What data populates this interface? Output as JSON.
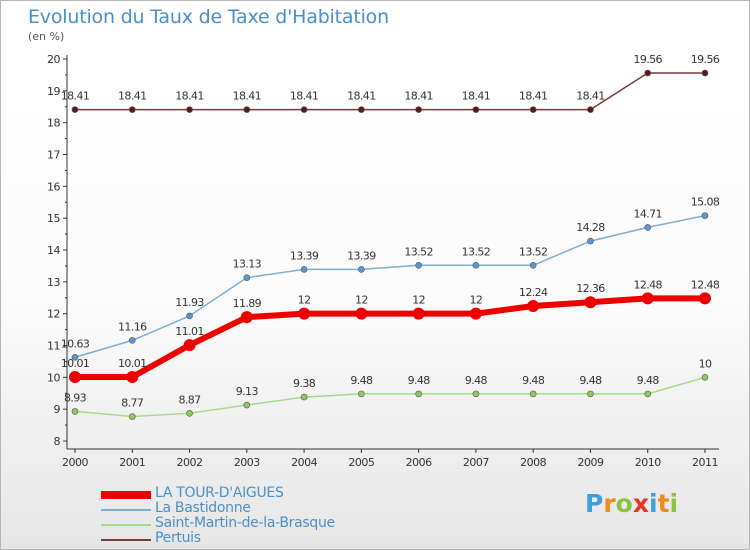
{
  "title": "Evolution du Taux de Taxe d'Habitation",
  "subtitle": "(en %)",
  "logo": {
    "text": "Proxiti",
    "letters": [
      {
        "ch": "P",
        "color": "#3e9fd8"
      },
      {
        "ch": "r",
        "color": "#f08a1c"
      },
      {
        "ch": "o",
        "color": "#8ac43f"
      },
      {
        "ch": "x",
        "color": "#e8341c"
      },
      {
        "ch": "i",
        "color": "#3e9fd8"
      },
      {
        "ch": "t",
        "color": "#f08a1c"
      },
      {
        "ch": "i",
        "color": "#8ac43f"
      }
    ]
  },
  "chart_data": {
    "type": "line",
    "x": [
      "2000",
      "2001",
      "2002",
      "2003",
      "2004",
      "2005",
      "2006",
      "2007",
      "2008",
      "2009",
      "2010",
      "2011"
    ],
    "ylim": [
      8,
      20
    ],
    "yticks": [
      "8",
      "9",
      "10",
      "11",
      "12",
      "13",
      "14",
      "15",
      "16",
      "17",
      "18",
      "19",
      "20"
    ],
    "grid": false,
    "legend_position": "bottom-left",
    "series": [
      {
        "name": "Pertuis",
        "color": "#7a3a3a",
        "marker_color": "#5a1a1a",
        "stroke_width": 1.5,
        "marker_radius": 3,
        "values": [
          18.41,
          18.41,
          18.41,
          18.41,
          18.41,
          18.41,
          18.41,
          18.41,
          18.41,
          18.41,
          19.56,
          19.56
        ],
        "labels": [
          "18.41",
          "18.41",
          "18.41",
          "18.41",
          "18.41",
          "18.41",
          "18.41",
          "18.41",
          "18.41",
          "18.41",
          "19.56",
          "19.56"
        ]
      },
      {
        "name": "La Bastidonne",
        "color": "#7eaed6",
        "marker_color": "#5b97cc",
        "stroke_width": 1.5,
        "marker_radius": 3,
        "values": [
          10.63,
          11.16,
          11.93,
          13.13,
          13.39,
          13.39,
          13.52,
          13.52,
          13.52,
          14.28,
          14.71,
          15.08
        ],
        "labels": [
          "10.63",
          "11.16",
          "11.93",
          "13.13",
          "13.39",
          "13.39",
          "13.52",
          "13.52",
          "13.52",
          "14.28",
          "14.71",
          "15.08"
        ]
      },
      {
        "name": "Saint-Martin-de-la-Brasque",
        "color": "#a9d98a",
        "marker_color": "#8cca5e",
        "stroke_width": 1.5,
        "marker_radius": 3,
        "values": [
          8.93,
          8.77,
          8.87,
          9.13,
          9.38,
          9.48,
          9.48,
          9.48,
          9.48,
          9.48,
          9.48,
          10
        ],
        "labels": [
          "8.93",
          "8.77",
          "8.87",
          "9.13",
          "9.38",
          "9.48",
          "9.48",
          "9.48",
          "9.48",
          "9.48",
          "9.48",
          "10"
        ]
      },
      {
        "name": "LA TOUR-D'AIGUES",
        "color": "#ee0000",
        "marker_color": "#ee0000",
        "stroke_width": 6,
        "marker_radius": 6,
        "values": [
          10.01,
          10.01,
          11.01,
          11.89,
          12,
          12,
          12,
          12,
          12.24,
          12.36,
          12.48,
          12.48
        ],
        "labels": [
          "10.01",
          "10.01",
          "11.01",
          "11.89",
          "12",
          "12",
          "12",
          "12",
          "12.24",
          "12.36",
          "12.48",
          "12.48"
        ]
      }
    ],
    "legend_order": [
      3,
      1,
      2,
      0
    ]
  }
}
